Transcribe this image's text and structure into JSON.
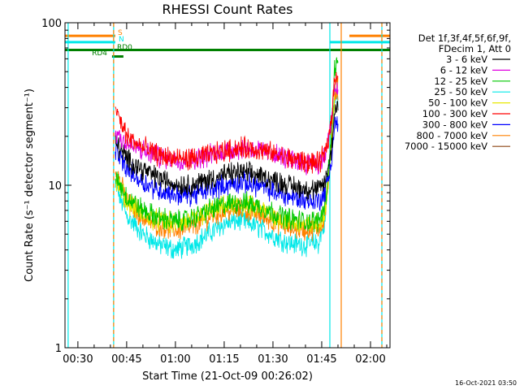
{
  "chart_data": {
    "type": "line",
    "title": "RHESSI Count Rates",
    "xlabel": "Start Time (21-Oct-09 00:26:02)",
    "ylabel": "Count Rate (s⁻¹ detector segment⁻¹)",
    "yscale": "log",
    "ylim": [
      1,
      100
    ],
    "xlim": [
      "00:26:02",
      "02:06:00"
    ],
    "x_ticks": [
      "00:30",
      "00:45",
      "01:00",
      "01:15",
      "01:30",
      "01:45",
      "02:00"
    ],
    "y_ticks": [
      "1",
      "10",
      "100"
    ],
    "data_span": [
      "00:41:30",
      "01:50:00"
    ],
    "legend": {
      "header": [
        "Det 1f,3f,4f,5f,6f,9f,",
        "FDecim 1, Att 0"
      ],
      "placement": "right"
    },
    "series": [
      {
        "name": "3 - 6 keV",
        "color": "#000000",
        "x": [
          "00:42",
          "00:45",
          "00:50",
          "00:55",
          "01:00",
          "01:05",
          "01:10",
          "01:15",
          "01:20",
          "01:25",
          "01:30",
          "01:35",
          "01:40",
          "01:44",
          "01:46",
          "01:48",
          "01:49"
        ],
        "values": [
          18,
          14.5,
          12.5,
          11.0,
          10.2,
          10.0,
          10.8,
          11.6,
          12.0,
          11.6,
          10.8,
          10.0,
          9.5,
          9.3,
          10.5,
          16,
          30
        ]
      },
      {
        "name": "6 - 12 keV",
        "color": "#e000e0",
        "x": [
          "00:42",
          "00:45",
          "00:50",
          "00:55",
          "01:00",
          "01:05",
          "01:10",
          "01:15",
          "01:20",
          "01:25",
          "01:30",
          "01:35",
          "01:40",
          "01:44",
          "01:46",
          "01:48",
          "01:49"
        ],
        "values": [
          21,
          18,
          16.2,
          15.0,
          14.4,
          14.3,
          15.2,
          16.2,
          16.8,
          16.5,
          15.6,
          14.4,
          13.8,
          13.5,
          15,
          24,
          40
        ]
      },
      {
        "name": "12 - 25 keV",
        "color": "#00c800",
        "x": [
          "00:42",
          "00:45",
          "00:50",
          "00:55",
          "01:00",
          "01:05",
          "01:10",
          "01:15",
          "01:20",
          "01:25",
          "01:30",
          "01:35",
          "01:40",
          "01:44",
          "01:46",
          "01:48",
          "01:49"
        ],
        "values": [
          11,
          8.5,
          7.0,
          6.3,
          6.0,
          6.2,
          7.0,
          7.6,
          7.9,
          7.5,
          6.8,
          6.2,
          6.0,
          6.0,
          7.5,
          20,
          55
        ]
      },
      {
        "name": "25 - 50 keV",
        "color": "#00e8e8",
        "x": [
          "00:42",
          "00:45",
          "00:50",
          "00:55",
          "01:00",
          "01:05",
          "01:10",
          "01:15",
          "01:20",
          "01:25",
          "01:30",
          "01:35",
          "01:40",
          "01:44",
          "01:46",
          "01:48",
          "01:49"
        ],
        "values": [
          9.5,
          6.5,
          5.0,
          4.3,
          4.0,
          4.3,
          5.0,
          5.8,
          6.1,
          5.6,
          4.9,
          4.4,
          4.3,
          4.4,
          6,
          18,
          35
        ]
      },
      {
        "name": "50 - 100 keV",
        "color": "#e8e800",
        "x": [
          "00:42",
          "00:45",
          "00:50",
          "00:55",
          "01:00",
          "01:05",
          "01:10",
          "01:15",
          "01:20",
          "01:25",
          "01:30",
          "01:35",
          "01:40",
          "01:44",
          "01:46",
          "01:48",
          "01:49"
        ],
        "values": [
          10.5,
          8.0,
          6.6,
          6.0,
          5.8,
          6.0,
          6.8,
          7.4,
          7.6,
          7.2,
          6.5,
          5.9,
          5.7,
          5.8,
          7,
          18,
          40
        ]
      },
      {
        "name": "100 - 300 keV",
        "color": "#ff0000",
        "x": [
          "00:42",
          "00:45",
          "00:50",
          "00:55",
          "01:00",
          "01:05",
          "01:10",
          "01:15",
          "01:20",
          "01:25",
          "01:30",
          "01:35",
          "01:40",
          "01:44",
          "01:46",
          "01:48",
          "01:49"
        ],
        "values": [
          28,
          20,
          17.0,
          15.3,
          14.6,
          14.5,
          15.3,
          16.3,
          17.0,
          16.6,
          15.7,
          14.6,
          13.9,
          13.6,
          15.5,
          25,
          48
        ]
      },
      {
        "name": "300 - 800 keV",
        "color": "#0000ff",
        "x": [
          "00:42",
          "00:45",
          "00:50",
          "00:55",
          "01:00",
          "01:05",
          "01:10",
          "01:15",
          "01:20",
          "01:25",
          "01:30",
          "01:35",
          "01:40",
          "01:44",
          "01:46",
          "01:48",
          "01:49"
        ],
        "values": [
          16,
          12.5,
          10.5,
          9.3,
          8.8,
          8.7,
          9.3,
          10.0,
          10.4,
          10.0,
          9.2,
          8.5,
          8.1,
          8.0,
          9.0,
          14,
          24
        ]
      },
      {
        "name": "800 - 7000 keV",
        "color": "#ff8000",
        "x": [
          "00:42",
          "00:45",
          "00:50",
          "00:55",
          "01:00",
          "01:05",
          "01:10",
          "01:15",
          "01:20",
          "01:25",
          "01:30",
          "01:35",
          "01:40",
          "01:44",
          "01:46",
          "01:48",
          "01:49"
        ],
        "values": [
          12,
          8.0,
          6.3,
          5.6,
          5.3,
          5.5,
          6.3,
          6.9,
          7.1,
          6.7,
          6.0,
          5.5,
          5.3,
          5.4,
          6.5,
          16,
          38
        ]
      },
      {
        "name": "7000 - 15000 keV",
        "color": "#8b4513",
        "x": [],
        "values": []
      }
    ],
    "flags": [
      {
        "label": "S",
        "color": "#ff8000",
        "value": 83,
        "segments": [
          [
            "00:26:02",
            "00:41:30"
          ],
          [
            "01:53:30",
            "02:06:00"
          ]
        ]
      },
      {
        "label": "N",
        "color": "#00e8e8",
        "value": 76,
        "segments": [
          [
            "00:26:02",
            "00:41:30"
          ],
          [
            "01:47:30",
            "02:06:00"
          ]
        ]
      },
      {
        "label": "RD0",
        "color": "#008000",
        "value": 68,
        "segments": [
          [
            "00:26:02",
            "02:06:00"
          ]
        ]
      },
      {
        "label": "RD4",
        "color": "#008000",
        "value": 62,
        "segments": [
          [
            "00:40:30",
            "00:44:00"
          ]
        ]
      }
    ],
    "markers": [
      {
        "time": "00:27:00",
        "color": "#00e8e8",
        "style": "solid"
      },
      {
        "time": "00:41:00",
        "color": "#00e8e8",
        "style": "solid"
      },
      {
        "time": "00:41:00",
        "color": "#ff8000",
        "style": "dashed"
      },
      {
        "time": "01:47:30",
        "color": "#00e8e8",
        "style": "solid"
      },
      {
        "time": "01:51:00",
        "color": "#ff8000",
        "style": "solid"
      },
      {
        "time": "02:03:30",
        "color": "#00e8e8",
        "style": "solid"
      },
      {
        "time": "02:03:30",
        "color": "#ff8000",
        "style": "dashed"
      }
    ],
    "grid": false
  },
  "timestamp": "16-Oct-2021 03:50"
}
